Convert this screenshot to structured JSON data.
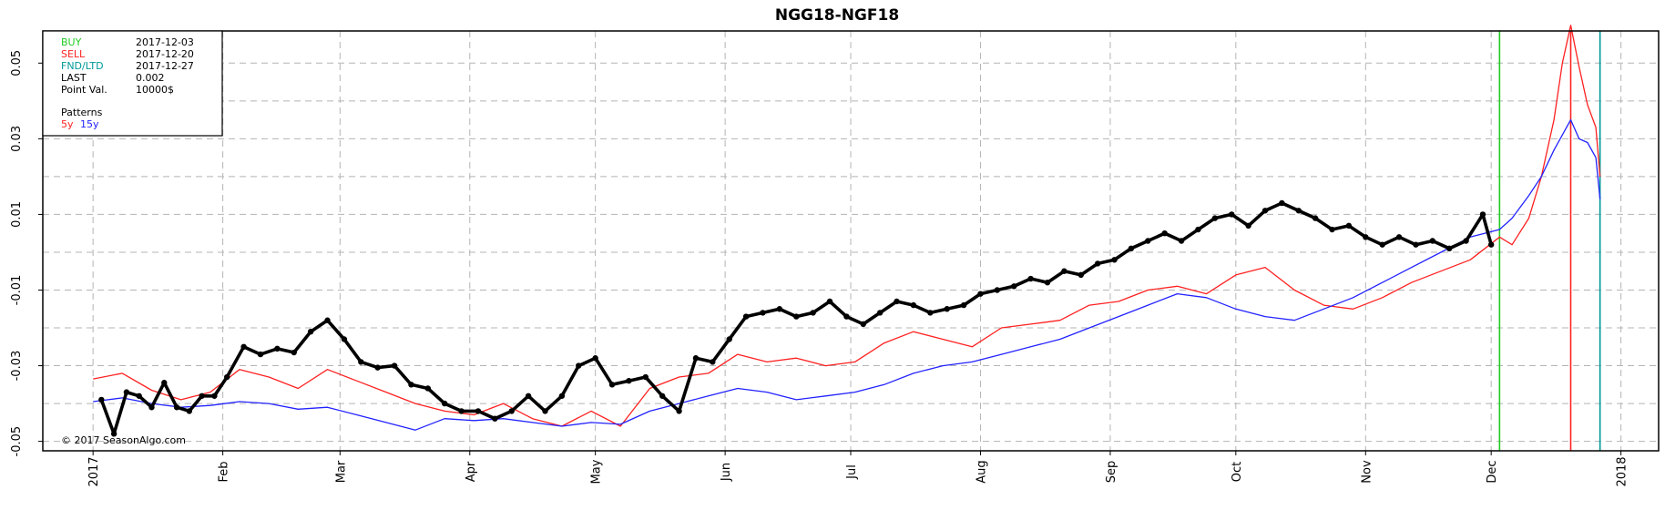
{
  "chart_data": {
    "type": "line",
    "title": "NGG18-NGF18",
    "xlabel": "",
    "ylabel": "",
    "x_ticks": [
      "2017",
      "Feb",
      "Mar",
      "Apr",
      "May",
      "Jun",
      "Jul",
      "Aug",
      "Sep",
      "Oct",
      "Nov",
      "Dec",
      "2018"
    ],
    "x_tick_dates": [
      "2017-01-01",
      "2017-02-01",
      "2017-03-01",
      "2017-04-01",
      "2017-05-01",
      "2017-06-01",
      "2017-07-01",
      "2017-08-01",
      "2017-09-01",
      "2017-10-01",
      "2017-11-01",
      "2017-12-01",
      "2018-01-01"
    ],
    "y_ticks": [
      "-0.05",
      "-0.03",
      "-0.01",
      "0.01",
      "0.03",
      "0.05"
    ],
    "y_tick_values": [
      -0.05,
      -0.03,
      -0.01,
      0.01,
      0.03,
      0.05
    ],
    "xlim": [
      "2016-12-20",
      "2018-01-10"
    ],
    "ylim": [
      -0.0525,
      0.0585
    ],
    "grid": true,
    "legend_position": "top-left",
    "watermark": "© 2017 SeasonAlgo.com",
    "info": {
      "rows": [
        {
          "label": "BUY",
          "value": "2017-12-03",
          "color": "#22cc22"
        },
        {
          "label": "SELL",
          "value": "2017-12-20",
          "color": "#ff2222"
        },
        {
          "label": "FND/LTD",
          "value": "2017-12-27",
          "color": "#009999"
        },
        {
          "label": "LAST",
          "value": "0.002",
          "color": "#000000"
        },
        {
          "label": "Point Val.",
          "value": "10000$",
          "color": "#000000"
        }
      ],
      "patterns_label": "Patterns",
      "pattern_5y": "5y",
      "pattern_15y": "15y"
    },
    "vlines": [
      {
        "name": "BUY",
        "x": "2017-12-03",
        "color": "#22cc22"
      },
      {
        "name": "SELL",
        "x": "2017-12-20",
        "color": "#ff2222"
      },
      {
        "name": "FND/LTD",
        "x": "2017-12-27",
        "color": "#009999"
      }
    ],
    "series": [
      {
        "name": "5y",
        "color": "#ff2020",
        "x": [
          "2017-01-01",
          "2017-01-08",
          "2017-01-15",
          "2017-01-22",
          "2017-01-29",
          "2017-02-05",
          "2017-02-12",
          "2017-02-19",
          "2017-02-26",
          "2017-03-05",
          "2017-03-12",
          "2017-03-19",
          "2017-03-26",
          "2017-04-02",
          "2017-04-09",
          "2017-04-16",
          "2017-04-23",
          "2017-04-30",
          "2017-05-07",
          "2017-05-14",
          "2017-05-21",
          "2017-05-28",
          "2017-06-04",
          "2017-06-11",
          "2017-06-18",
          "2017-06-25",
          "2017-07-02",
          "2017-07-09",
          "2017-07-16",
          "2017-07-23",
          "2017-07-30",
          "2017-08-06",
          "2017-08-13",
          "2017-08-20",
          "2017-08-27",
          "2017-09-03",
          "2017-09-10",
          "2017-09-17",
          "2017-09-24",
          "2017-10-01",
          "2017-10-08",
          "2017-10-15",
          "2017-10-22",
          "2017-10-29",
          "2017-11-05",
          "2017-11-12",
          "2017-11-19",
          "2017-11-26",
          "2017-12-03",
          "2017-12-06",
          "2017-12-10",
          "2017-12-13",
          "2017-12-16",
          "2017-12-18",
          "2017-12-20",
          "2017-12-22",
          "2017-12-24",
          "2017-12-26",
          "2017-12-27"
        ],
        "y": [
          -0.0335,
          -0.032,
          -0.0365,
          -0.039,
          -0.037,
          -0.031,
          -0.033,
          -0.036,
          -0.031,
          -0.034,
          -0.037,
          -0.04,
          -0.042,
          -0.043,
          -0.04,
          -0.044,
          -0.046,
          -0.042,
          -0.046,
          -0.036,
          -0.033,
          -0.032,
          -0.027,
          -0.029,
          -0.028,
          -0.03,
          -0.029,
          -0.024,
          -0.021,
          -0.023,
          -0.025,
          -0.02,
          -0.019,
          -0.018,
          -0.014,
          -0.013,
          -0.01,
          -0.009,
          -0.011,
          -0.006,
          -0.004,
          -0.01,
          -0.014,
          -0.015,
          -0.012,
          -0.008,
          -0.005,
          -0.002,
          0.004,
          0.002,
          0.009,
          0.02,
          0.035,
          0.05,
          0.06,
          0.049,
          0.039,
          0.033,
          0.02
        ]
      },
      {
        "name": "15y",
        "color": "#2222ff",
        "x": [
          "2017-01-01",
          "2017-01-08",
          "2017-01-15",
          "2017-01-22",
          "2017-01-29",
          "2017-02-05",
          "2017-02-12",
          "2017-02-19",
          "2017-02-26",
          "2017-03-05",
          "2017-03-12",
          "2017-03-19",
          "2017-03-26",
          "2017-04-02",
          "2017-04-09",
          "2017-04-16",
          "2017-04-23",
          "2017-04-30",
          "2017-05-07",
          "2017-05-14",
          "2017-05-21",
          "2017-05-28",
          "2017-06-04",
          "2017-06-11",
          "2017-06-18",
          "2017-06-25",
          "2017-07-02",
          "2017-07-09",
          "2017-07-16",
          "2017-07-23",
          "2017-07-30",
          "2017-08-06",
          "2017-08-13",
          "2017-08-20",
          "2017-08-27",
          "2017-09-03",
          "2017-09-10",
          "2017-09-17",
          "2017-09-24",
          "2017-10-01",
          "2017-10-08",
          "2017-10-15",
          "2017-10-22",
          "2017-10-29",
          "2017-11-05",
          "2017-11-12",
          "2017-11-19",
          "2017-11-26",
          "2017-12-03",
          "2017-12-06",
          "2017-12-10",
          "2017-12-13",
          "2017-12-16",
          "2017-12-18",
          "2017-12-20",
          "2017-12-22",
          "2017-12-24",
          "2017-12-26",
          "2017-12-27"
        ],
        "y": [
          -0.0395,
          -0.0385,
          -0.04,
          -0.041,
          -0.0405,
          -0.0395,
          -0.04,
          -0.0415,
          -0.041,
          -0.043,
          -0.045,
          -0.047,
          -0.044,
          -0.0445,
          -0.044,
          -0.045,
          -0.046,
          -0.045,
          -0.0455,
          -0.042,
          -0.04,
          -0.038,
          -0.036,
          -0.037,
          -0.039,
          -0.038,
          -0.037,
          -0.035,
          -0.032,
          -0.03,
          -0.029,
          -0.027,
          -0.025,
          -0.023,
          -0.02,
          -0.017,
          -0.014,
          -0.011,
          -0.012,
          -0.015,
          -0.017,
          -0.018,
          -0.015,
          -0.012,
          -0.008,
          -0.004,
          0.0,
          0.004,
          0.006,
          0.009,
          0.015,
          0.02,
          0.027,
          0.031,
          0.035,
          0.03,
          0.029,
          0.025,
          0.014
        ]
      },
      {
        "name": "NGG18-NGF18",
        "color": "#000000",
        "x": [
          "2017-01-03",
          "2017-01-06",
          "2017-01-09",
          "2017-01-12",
          "2017-01-15",
          "2017-01-18",
          "2017-01-21",
          "2017-01-24",
          "2017-01-27",
          "2017-01-30",
          "2017-02-02",
          "2017-02-06",
          "2017-02-10",
          "2017-02-14",
          "2017-02-18",
          "2017-02-22",
          "2017-02-26",
          "2017-03-02",
          "2017-03-06",
          "2017-03-10",
          "2017-03-14",
          "2017-03-18",
          "2017-03-22",
          "2017-03-26",
          "2017-03-30",
          "2017-04-03",
          "2017-04-07",
          "2017-04-11",
          "2017-04-15",
          "2017-04-19",
          "2017-04-23",
          "2017-04-27",
          "2017-05-01",
          "2017-05-05",
          "2017-05-09",
          "2017-05-13",
          "2017-05-17",
          "2017-05-21",
          "2017-05-25",
          "2017-05-29",
          "2017-06-02",
          "2017-06-06",
          "2017-06-10",
          "2017-06-14",
          "2017-06-18",
          "2017-06-22",
          "2017-06-26",
          "2017-06-30",
          "2017-07-04",
          "2017-07-08",
          "2017-07-12",
          "2017-07-16",
          "2017-07-20",
          "2017-07-24",
          "2017-07-28",
          "2017-08-01",
          "2017-08-05",
          "2017-08-09",
          "2017-08-13",
          "2017-08-17",
          "2017-08-21",
          "2017-08-25",
          "2017-08-29",
          "2017-09-02",
          "2017-09-06",
          "2017-09-10",
          "2017-09-14",
          "2017-09-18",
          "2017-09-22",
          "2017-09-26",
          "2017-09-30",
          "2017-10-04",
          "2017-10-08",
          "2017-10-12",
          "2017-10-16",
          "2017-10-20",
          "2017-10-24",
          "2017-10-28",
          "2017-11-01",
          "2017-11-05",
          "2017-11-09",
          "2017-11-13",
          "2017-11-17",
          "2017-11-21",
          "2017-11-25",
          "2017-11-29",
          "2017-12-01"
        ],
        "y": [
          -0.039,
          -0.048,
          -0.037,
          -0.038,
          -0.041,
          -0.0345,
          -0.041,
          -0.042,
          -0.038,
          -0.038,
          -0.033,
          -0.025,
          -0.027,
          -0.0255,
          -0.0265,
          -0.021,
          -0.018,
          -0.023,
          -0.029,
          -0.0305,
          -0.03,
          -0.035,
          -0.036,
          -0.04,
          -0.042,
          -0.042,
          -0.044,
          -0.042,
          -0.038,
          -0.042,
          -0.038,
          -0.03,
          -0.028,
          -0.035,
          -0.034,
          -0.033,
          -0.038,
          -0.042,
          -0.028,
          -0.029,
          -0.023,
          -0.017,
          -0.016,
          -0.015,
          -0.017,
          -0.016,
          -0.013,
          -0.017,
          -0.019,
          -0.016,
          -0.013,
          -0.014,
          -0.016,
          -0.015,
          -0.014,
          -0.011,
          -0.01,
          -0.009,
          -0.007,
          -0.008,
          -0.005,
          -0.006,
          -0.003,
          -0.002,
          0.001,
          0.003,
          0.005,
          0.003,
          0.006,
          0.009,
          0.01,
          0.007,
          0.011,
          0.013,
          0.011,
          0.009,
          0.006,
          0.007,
          0.004,
          0.002,
          0.004,
          0.002,
          0.003,
          0.001,
          0.003,
          0.01,
          0.002
        ]
      }
    ]
  }
}
